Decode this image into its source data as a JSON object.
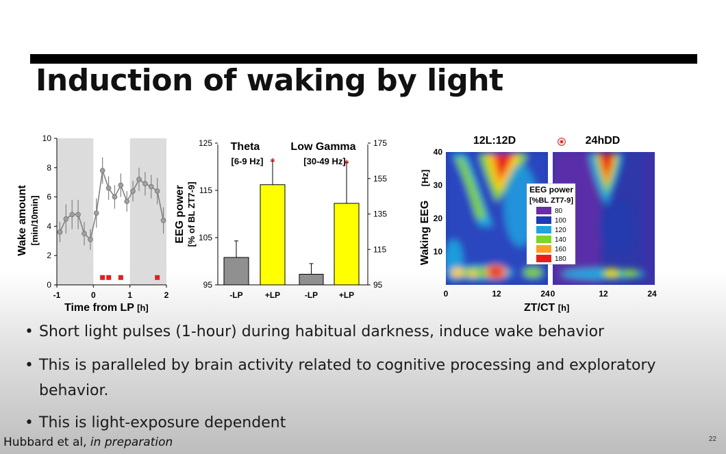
{
  "slide": {
    "title": "Induction of waking by light",
    "page_number": "22",
    "citation_authors": "Hubbard et al, ",
    "citation_status": "in preparation",
    "bullets": [
      "Short light pulses (1-hour) during habitual darkness, induce wake behavior",
      "This is paralleled by brain activity related to cognitive processing and exploratory behavior.",
      "This is light-exposure dependent"
    ]
  },
  "chart_data": [
    {
      "type": "line",
      "xlabel": "Time from LP",
      "xlabel_unit": "[h]",
      "ylabel": "Wake amount",
      "ylabel_unit": "[min/10min]",
      "xlim": [
        -1,
        2
      ],
      "ylim": [
        0,
        10
      ],
      "x_ticks": [
        "-1",
        "0",
        "1",
        "2"
      ],
      "y_ticks": [
        "0",
        "2",
        "4",
        "6",
        "8",
        "10"
      ],
      "shaded_x_ranges": [
        [
          -1,
          0
        ],
        [
          1,
          2
        ]
      ],
      "series": [
        {
          "x": [
            -0.917,
            -0.75,
            -0.583,
            -0.417,
            -0.25,
            -0.083,
            0.083,
            0.25,
            0.417,
            0.583,
            0.75,
            0.917,
            1.083,
            1.25,
            1.417,
            1.583,
            1.75,
            1.917
          ],
          "y": [
            3.6,
            4.5,
            4.8,
            4.8,
            3.5,
            3.1,
            4.9,
            7.8,
            6.6,
            6.0,
            6.8,
            5.7,
            6.4,
            7.2,
            6.9,
            6.7,
            6.4,
            4.4
          ],
          "err": [
            0.7,
            1.0,
            1.0,
            1.0,
            0.8,
            0.7,
            1.0,
            0.9,
            0.8,
            0.8,
            0.8,
            0.7,
            0.7,
            0.8,
            0.8,
            0.8,
            0.9,
            0.9
          ],
          "color": "#808080"
        }
      ],
      "markers": {
        "x": [
          0.25,
          0.42,
          0.75,
          1.75
        ],
        "y": 0.5,
        "color": "#e02020"
      }
    },
    {
      "type": "bar",
      "ylabel": "EEG power",
      "ylabel_unit": "[% of BL ZT7-9]",
      "groups": [
        {
          "name": "Theta",
          "band": "[6-9 Hz]",
          "axis": "left",
          "ylim": [
            95,
            125
          ],
          "categories": [
            "-LP",
            "+LP"
          ],
          "values": [
            100.8,
            116.2
          ],
          "err": [
            3.5,
            5.0
          ],
          "colors": [
            "#909090",
            "#ffff00"
          ],
          "significant": [
            false,
            true
          ]
        },
        {
          "name": "Low Gamma",
          "band": "[30-49 Hz]",
          "axis": "right",
          "ylim": [
            95,
            175
          ],
          "categories": [
            "-LP",
            "+LP"
          ],
          "values": [
            101.0,
            141.0
          ],
          "err": [
            6.0,
            23.0
          ],
          "colors": [
            "#909090",
            "#ffff00"
          ],
          "significant": [
            false,
            true
          ]
        }
      ],
      "left_ticks": [
        "95",
        "105",
        "115",
        "125"
      ],
      "right_ticks": [
        "95",
        "115",
        "135",
        "155",
        "175"
      ],
      "significance_mark": "*"
    },
    {
      "type": "heatmap",
      "ylabel": "Waking EEG",
      "ylabel_unit": "[Hz]",
      "xlabel": "ZT/CT",
      "xlabel_unit": "[h]",
      "panels": [
        "12L:12D",
        "24hDD"
      ],
      "x_ticks_left": [
        "0",
        "12",
        "24"
      ],
      "x_ticks_right": [
        "0",
        "12",
        "24"
      ],
      "y_ticks": [
        "10",
        "20",
        "30",
        "40"
      ],
      "ylim": [
        0,
        40
      ],
      "legend_title_1": "EEG power",
      "legend_title_2": "[%BL ZT7-9]",
      "legend": [
        {
          "label": "80",
          "color": "#6a2ca8"
        },
        {
          "label": "100",
          "color": "#1f3cb0"
        },
        {
          "label": "120",
          "color": "#1ea5e0"
        },
        {
          "label": "140",
          "color": "#7fd32a"
        },
        {
          "label": "160",
          "color": "#ffa01e"
        },
        {
          "label": "180",
          "color": "#e81e1e"
        }
      ]
    }
  ]
}
